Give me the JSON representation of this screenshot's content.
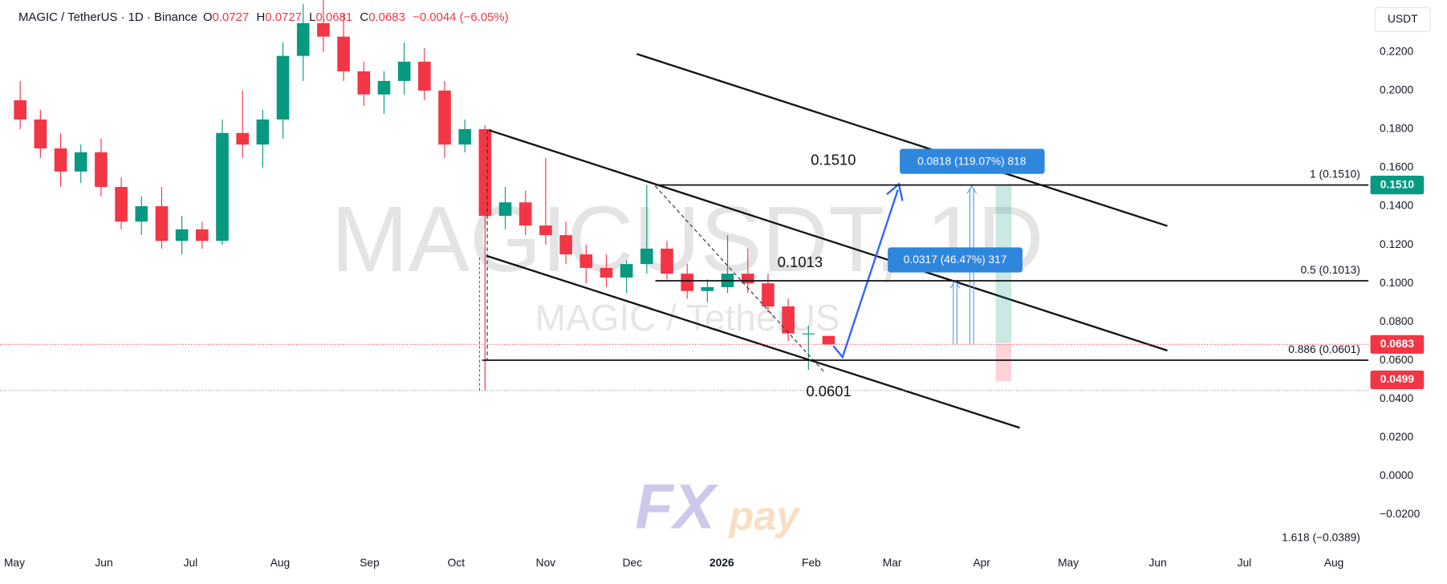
{
  "header": {
    "symbol": "MAGIC / TetherUS · 1D · Binance",
    "ohlc": [
      {
        "key": "O",
        "value": "0.0727"
      },
      {
        "key": "H",
        "value": "0.0727"
      },
      {
        "key": "L",
        "value": "0.0681"
      },
      {
        "key": "C",
        "value": "0.0683"
      }
    ],
    "change": "−0.0044 (−6.05%)",
    "currency": "USDT"
  },
  "watermark": {
    "main": "MAGICUSDT, 1D",
    "sub": "MAGIC / TetherUS"
  },
  "logo": {
    "fx": "FX",
    "pay": "pay"
  },
  "chart_data": {
    "type": "candlestick",
    "up_color": "#089981",
    "down_color": "#f23645",
    "x": [
      2,
      9,
      16,
      23,
      30,
      37,
      44,
      51,
      58,
      65,
      72,
      79,
      86,
      93,
      100,
      107,
      114,
      121,
      128,
      135,
      142,
      149,
      156,
      163,
      170,
      177,
      184,
      191,
      198,
      205,
      212,
      219,
      226,
      233,
      240,
      247,
      254,
      261,
      268,
      275,
      282
    ],
    "open": [
      0.195,
      0.185,
      0.17,
      0.158,
      0.168,
      0.15,
      0.132,
      0.14,
      0.122,
      0.128,
      0.122,
      0.178,
      0.172,
      0.185,
      0.218,
      0.235,
      0.228,
      0.21,
      0.198,
      0.205,
      0.215,
      0.2,
      0.172,
      0.18,
      0.135,
      0.142,
      0.13,
      0.125,
      0.115,
      0.108,
      0.103,
      0.11,
      0.118,
      0.105,
      0.096,
      0.098,
      0.105,
      0.1,
      0.088,
      0.074,
      0.0727
    ],
    "high": [
      0.205,
      0.19,
      0.178,
      0.172,
      0.175,
      0.155,
      0.145,
      0.15,
      0.135,
      0.132,
      0.185,
      0.2,
      0.19,
      0.225,
      0.245,
      0.247,
      0.24,
      0.215,
      0.21,
      0.225,
      0.222,
      0.205,
      0.185,
      0.182,
      0.15,
      0.148,
      0.165,
      0.132,
      0.12,
      0.115,
      0.112,
      0.151,
      0.122,
      0.11,
      0.102,
      0.125,
      0.118,
      0.105,
      0.092,
      0.078,
      0.0727
    ],
    "low": [
      0.18,
      0.165,
      0.15,
      0.152,
      0.145,
      0.128,
      0.125,
      0.118,
      0.115,
      0.118,
      0.12,
      0.165,
      0.16,
      0.175,
      0.205,
      0.22,
      0.205,
      0.192,
      0.188,
      0.198,
      0.195,
      0.165,
      0.168,
      0.0444,
      0.128,
      0.125,
      0.12,
      0.11,
      0.1,
      0.098,
      0.095,
      0.105,
      0.102,
      0.092,
      0.09,
      0.095,
      0.095,
      0.085,
      0.07,
      0.055,
      0.0681
    ],
    "close": [
      0.185,
      0.17,
      0.158,
      0.168,
      0.15,
      0.132,
      0.14,
      0.122,
      0.128,
      0.122,
      0.178,
      0.172,
      0.185,
      0.218,
      0.235,
      0.228,
      0.21,
      0.198,
      0.205,
      0.215,
      0.2,
      0.172,
      0.18,
      0.135,
      0.142,
      0.13,
      0.125,
      0.115,
      0.108,
      0.103,
      0.11,
      0.118,
      0.105,
      0.096,
      0.098,
      0.105,
      0.1,
      0.088,
      0.074,
      0.074,
      0.0683
    ],
    "xlim": [
      -5,
      469
    ],
    "xticks": [
      {
        "value": 0,
        "label": "May"
      },
      {
        "value": 31,
        "label": "Jun"
      },
      {
        "value": 61,
        "label": "Jul"
      },
      {
        "value": 92,
        "label": "Aug"
      },
      {
        "value": 123,
        "label": "Sep"
      },
      {
        "value": 153,
        "label": "Oct"
      },
      {
        "value": 184,
        "label": "Nov"
      },
      {
        "value": 214,
        "label": "Dec"
      },
      {
        "value": 245,
        "label": "2026"
      },
      {
        "value": 276,
        "label": "Feb"
      },
      {
        "value": 304,
        "label": "Mar"
      },
      {
        "value": 335,
        "label": "Apr"
      },
      {
        "value": 365,
        "label": "May"
      },
      {
        "value": 396,
        "label": "Jun"
      },
      {
        "value": 426,
        "label": "Jul"
      },
      {
        "value": 457,
        "label": "Aug"
      }
    ],
    "ylim": [
      -0.0401,
      0.247
    ],
    "yticks": [
      {
        "value": 0.22,
        "label": "0.2200"
      },
      {
        "value": 0.2,
        "label": "0.2000"
      },
      {
        "value": 0.18,
        "label": "0.1800"
      },
      {
        "value": 0.16,
        "label": "0.1600"
      },
      {
        "value": 0.14,
        "label": "0.1400"
      },
      {
        "value": 0.12,
        "label": "0.1200"
      },
      {
        "value": 0.1,
        "label": "0.1000"
      },
      {
        "value": 0.08,
        "label": "0.0800"
      },
      {
        "value": 0.06,
        "label": "0.0600"
      },
      {
        "value": 0.04,
        "label": "0.0400"
      },
      {
        "value": 0.02,
        "label": "0.0200"
      },
      {
        "value": 0,
        "label": "0.0000"
      },
      {
        "value": -0.02,
        "label": "−0.0200"
      }
    ],
    "fib_levels": [
      {
        "value": 0.151,
        "label": "1 (0.1510)",
        "start": 222
      },
      {
        "value": 0.1013,
        "label": "0.5 (0.1013)",
        "start": 222
      },
      {
        "value": 0.0601,
        "label": "0.886 (0.0601)",
        "start": 162
      },
      {
        "value": -0.0389,
        "label": "1.618 (−0.0389)",
        "start": null
      }
    ],
    "annotations": [
      "0.1510",
      "0.1013",
      "0.0601"
    ],
    "measures": [
      "0.0818 (119.07%) 818",
      "0.0317 (46.47%) 317"
    ],
    "price_labels": [
      {
        "value": 0.151,
        "label": "0.1510",
        "color": "#089981"
      },
      {
        "value": 0.0683,
        "label": "0.0683",
        "color": "#f23645"
      },
      {
        "value": 0.0499,
        "label": "0.0499",
        "color": "#f23645"
      }
    ]
  }
}
